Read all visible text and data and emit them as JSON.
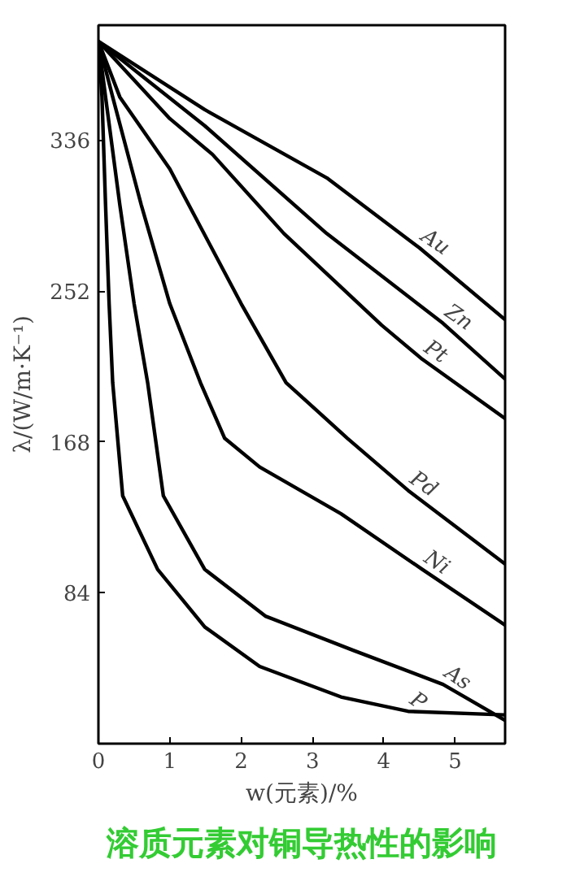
{
  "chart_data": {
    "type": "line",
    "title": "溶质元素对铜导热性的影响",
    "xlabel": "w(元素)/%",
    "ylabel": "λ/(W/m·K⁻¹)",
    "xlim": [
      0,
      5.7
    ],
    "ylim": [
      0,
      400
    ],
    "xticks": [
      0,
      1,
      2,
      3,
      4,
      5
    ],
    "yticks": [
      84,
      168,
      252,
      336
    ],
    "grid": false,
    "legend": false,
    "marker": "none",
    "line_style": "solid",
    "series": [
      {
        "name": "Au",
        "color": "#000000",
        "x": [
          0,
          1.49,
          3.2,
          4.5,
          5.7
        ],
        "values": [
          391,
          353,
          315,
          276,
          236
        ]
      },
      {
        "name": "Zn",
        "color": "#000000",
        "x": [
          0,
          1.49,
          3.2,
          4.83,
          5.7
        ],
        "values": [
          391,
          344,
          284,
          234,
          203
        ]
      },
      {
        "name": "Pt",
        "color": "#000000",
        "x": [
          0,
          1.0,
          1.6,
          2.6,
          3.97,
          4.54,
          5.7
        ],
        "values": [
          391,
          348,
          328,
          284,
          233,
          214,
          181
        ]
      },
      {
        "name": "Pd",
        "color": "#000000",
        "x": [
          0,
          0.3,
          1.0,
          2.0,
          2.63,
          3.49,
          4.34,
          5.7
        ],
        "values": [
          391,
          360,
          320,
          245,
          201,
          170,
          141,
          100
        ]
      },
      {
        "name": "Ni",
        "color": "#000000",
        "x": [
          0,
          0.2,
          0.6,
          1.0,
          1.43,
          1.77,
          2.26,
          3.4,
          4.54,
          5.7
        ],
        "values": [
          391,
          360,
          300,
          245,
          201,
          170,
          154,
          128,
          97,
          66
        ]
      },
      {
        "name": "As",
        "color": "#000000",
        "x": [
          0,
          0.1,
          0.3,
          0.5,
          0.69,
          0.91,
          1.49,
          2.34,
          3.57,
          4.83,
          5.7
        ],
        "values": [
          391,
          360,
          300,
          245,
          201,
          138,
          97,
          71,
          52,
          33,
          13
        ]
      },
      {
        "name": "P",
        "color": "#000000",
        "x": [
          0,
          0.05,
          0.1,
          0.15,
          0.2,
          0.34,
          0.83,
          1.49,
          2.26,
          3.4,
          4.34,
          5.7
        ],
        "values": [
          391,
          360,
          300,
          245,
          201,
          138,
          97,
          65,
          43,
          26,
          18,
          16
        ]
      }
    ]
  }
}
